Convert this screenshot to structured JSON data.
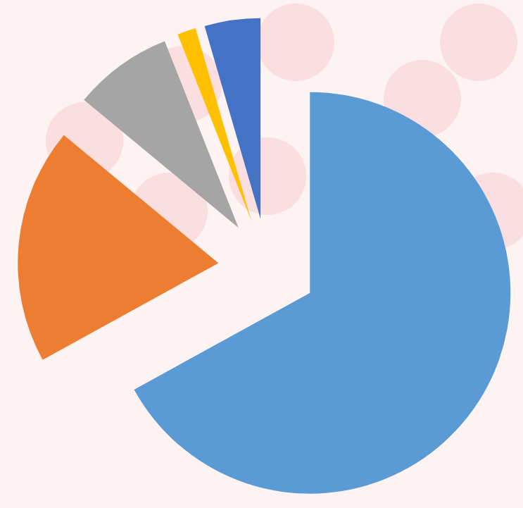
{
  "chart_data": {
    "type": "pie",
    "values": [
      67,
      19,
      8,
      1.5,
      4.5
    ],
    "colors": [
      "#5b9bd5",
      "#ed7d31",
      "#a5a5a5",
      "#ffc000",
      "#4472c4"
    ]
  }
}
